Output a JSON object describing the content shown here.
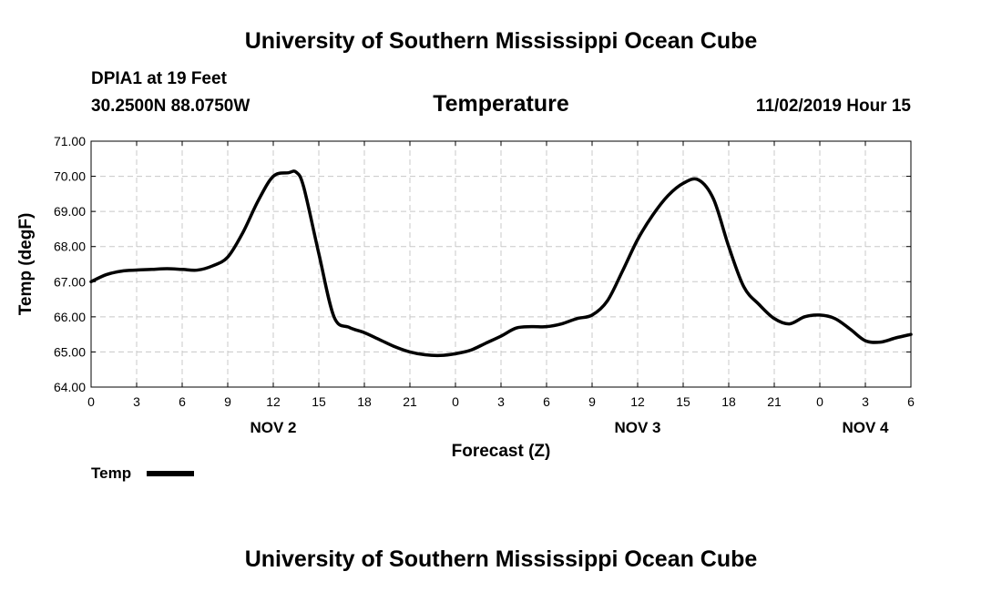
{
  "header": {
    "title": "University of Southern Mississippi Ocean Cube",
    "station": "DPIA1 at 19 Feet",
    "location": "30.2500N 88.0750W",
    "datetime": "11/02/2019 Hour 15"
  },
  "footer": {
    "title": "University of Southern Mississippi Ocean Cube"
  },
  "colors": {
    "line": "#000000",
    "grid": "#c8c8c8",
    "background": "#ffffff"
  },
  "chart_data": {
    "type": "line",
    "title": "Temperature",
    "xlabel": "Forecast (Z)",
    "ylabel": "Temp (degF)",
    "xlim": [
      0,
      54
    ],
    "ylim": [
      64,
      71
    ],
    "grid": true,
    "x_ticks": [
      0,
      3,
      6,
      9,
      12,
      15,
      18,
      21,
      24,
      27,
      30,
      33,
      36,
      39,
      42,
      45,
      48,
      51,
      54
    ],
    "x_tick_labels": [
      "0",
      "3",
      "6",
      "9",
      "12",
      "15",
      "18",
      "21",
      "0",
      "3",
      "6",
      "9",
      "12",
      "15",
      "18",
      "21",
      "0",
      "3",
      "6"
    ],
    "y_ticks": [
      64,
      65,
      66,
      67,
      68,
      69,
      70,
      71
    ],
    "y_tick_labels": [
      "64.00",
      "65.00",
      "66.00",
      "67.00",
      "68.00",
      "69.00",
      "70.00",
      "71.00"
    ],
    "day_labels": [
      {
        "label": "NOV 2",
        "x": 12
      },
      {
        "label": "NOV 3",
        "x": 36
      },
      {
        "label": "NOV 4",
        "x": 51
      }
    ],
    "legend": {
      "label": "Temp",
      "position": "bottom-left"
    },
    "series": [
      {
        "name": "Temp",
        "x": [
          0,
          1,
          2,
          3,
          4,
          5,
          6,
          7,
          8,
          9,
          10,
          11,
          12,
          13,
          13.5,
          14,
          15,
          16,
          17,
          18,
          19,
          20,
          21,
          22,
          23,
          24,
          25,
          26,
          27,
          28,
          29,
          30,
          31,
          32,
          33,
          34,
          35,
          36,
          37,
          38,
          39,
          40,
          41,
          42,
          43,
          44,
          45,
          46,
          47,
          48,
          49,
          50,
          51,
          52,
          53,
          54
        ],
        "values": [
          67.0,
          67.2,
          67.3,
          67.33,
          67.35,
          67.37,
          67.35,
          67.33,
          67.45,
          67.7,
          68.4,
          69.3,
          70.0,
          70.1,
          70.12,
          69.7,
          67.8,
          66.0,
          65.7,
          65.55,
          65.35,
          65.15,
          65.0,
          64.92,
          64.9,
          64.95,
          65.05,
          65.25,
          65.45,
          65.68,
          65.72,
          65.72,
          65.8,
          65.95,
          66.05,
          66.45,
          67.3,
          68.2,
          68.9,
          69.45,
          69.8,
          69.9,
          69.35,
          68.0,
          66.85,
          66.35,
          65.95,
          65.8,
          66.0,
          66.05,
          65.95,
          65.65,
          65.32,
          65.28,
          65.4,
          65.5
        ]
      }
    ]
  }
}
